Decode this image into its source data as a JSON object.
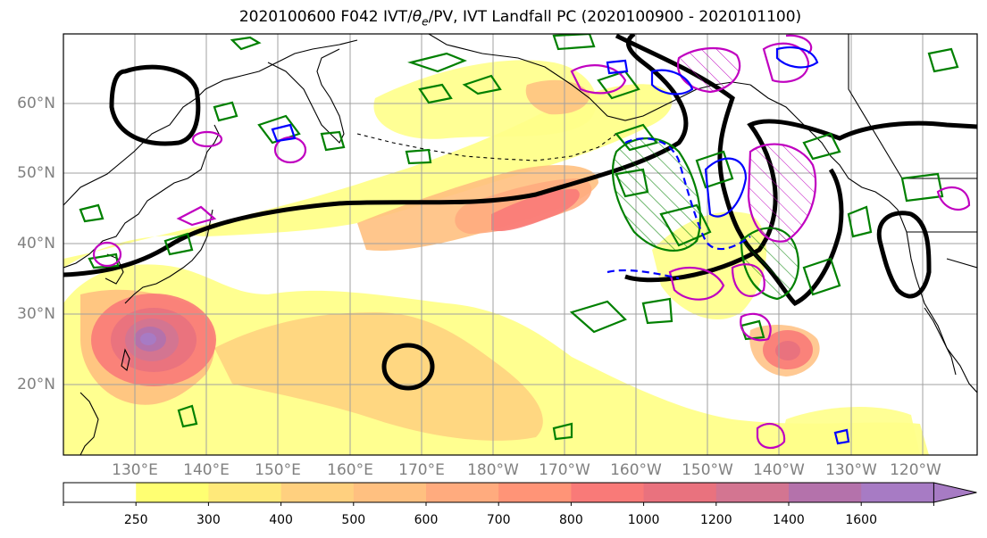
{
  "title": "2020100600 F042 IVT/θe/PV, IVT Landfall PC (2020100900 - 2020101100)",
  "map": {
    "lat_labels": [
      "60°N",
      "50°N",
      "40°N",
      "30°N",
      "20°N"
    ],
    "lon_labels": [
      "130°E",
      "140°E",
      "150°E",
      "160°E",
      "170°E",
      "180°W",
      "170°W",
      "160°W",
      "150°W",
      "140°W",
      "130°W",
      "120°W"
    ],
    "extent": {
      "lon_min": 120,
      "lon_max": 247.5,
      "lat_min": 10,
      "lat_max": 70
    },
    "fill_levels": [
      250,
      300,
      400,
      500,
      600,
      700,
      800,
      1000,
      1200,
      1400,
      1600
    ],
    "fill_colors": [
      "#ffffff",
      "#ffff72",
      "#ffe97a",
      "#ffd07f",
      "#ffc080",
      "#ffab7e",
      "#ff9477",
      "#f97a78",
      "#e9727e",
      "#d37591",
      "#b472ab",
      "#a77bc4"
    ],
    "contour_colors": {
      "pc": "#000000",
      "theta_e": "#008000",
      "pv_pos": "#c000c0",
      "pv_neg": "#0000ff"
    }
  },
  "colorbar": {
    "tick_labels": [
      "250",
      "300",
      "400",
      "500",
      "600",
      "700",
      "800",
      "1000",
      "1200",
      "1400",
      "1600"
    ],
    "extend": "max"
  }
}
